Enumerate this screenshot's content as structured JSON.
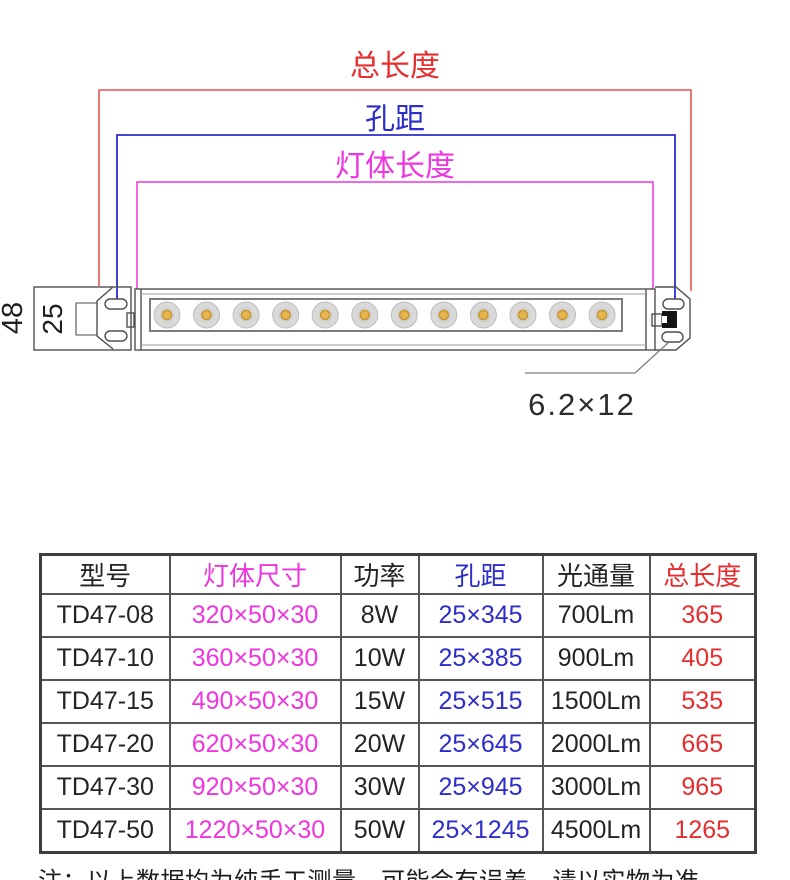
{
  "diagram": {
    "labels": {
      "total_length": "总长度",
      "hole_distance": "孔距",
      "body_length": "灯体长度",
      "height": "48",
      "slot_span": "25",
      "slot_size": "6.2×12"
    },
    "colors": {
      "total": "#e62e2e",
      "holes": "#2d2dcb",
      "body": "#ee35df"
    },
    "led_count": 12
  },
  "table": {
    "headers": [
      "型号",
      "灯体尺寸",
      "功率",
      "孔距",
      "光通量",
      "总长度"
    ],
    "rows": [
      [
        "TD47-08",
        "320×50×30",
        "8W",
        "25×345",
        "700Lm",
        "365"
      ],
      [
        "TD47-10",
        "360×50×30",
        "10W",
        "25×385",
        "900Lm",
        "405"
      ],
      [
        "TD47-15",
        "490×50×30",
        "15W",
        "25×515",
        "1500Lm",
        "535"
      ],
      [
        "TD47-20",
        "620×50×30",
        "20W",
        "25×645",
        "2000Lm",
        "665"
      ],
      [
        "TD47-30",
        "920×50×30",
        "30W",
        "25×945",
        "3000Lm",
        "965"
      ],
      [
        "TD47-50",
        "1220×50×30",
        "50W",
        "25×1245",
        "4500Lm",
        "1265"
      ]
    ]
  },
  "note": "注：以上数据均为纯手工测量，可能会有误差，请以实物为准"
}
